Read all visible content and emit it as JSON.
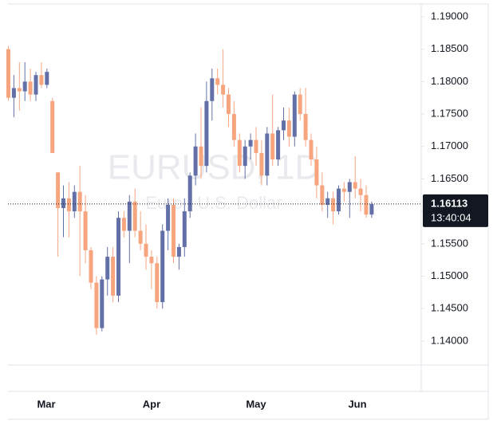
{
  "chart_data": {
    "type": "candlestick",
    "watermark_title": "EURUSD, 1D",
    "watermark_subtitle": "Euro / U.S. Dollar",
    "up_color": "#6370a8",
    "down_color": "#f6a57f",
    "open": [
      1.185,
      1.1775,
      1.179,
      1.1785,
      1.18,
      1.178,
      1.181,
      1.1795,
      1.177,
      1.166,
      1.1605,
      1.162,
      1.16,
      1.163,
      1.16,
      1.154,
      1.149,
      1.142,
      1.1495,
      1.153,
      1.147,
      1.159,
      1.157,
      1.1615,
      1.157,
      1.155,
      1.153,
      1.152,
      1.146,
      1.157,
      1.161,
      1.153,
      1.1545,
      1.16,
      1.1655,
      1.17,
      1.167,
      1.177,
      1.1805,
      1.1795,
      1.178,
      1.175,
      1.171,
      1.167,
      1.17,
      1.171,
      1.169,
      1.1655,
      1.172,
      1.168,
      1.1725,
      1.174,
      1.1715,
      1.178,
      1.175,
      1.171,
      1.168,
      1.164,
      1.161,
      1.162,
      1.16,
      1.1635,
      1.163,
      1.1645,
      1.1635,
      1.1625,
      1.1595
    ],
    "high": [
      1.1855,
      1.181,
      1.183,
      1.183,
      1.182,
      1.1815,
      1.183,
      1.182,
      1.1775,
      1.166,
      1.164,
      1.1645,
      1.164,
      1.167,
      1.1625,
      1.1545,
      1.15,
      1.15,
      1.1545,
      1.1545,
      1.16,
      1.16,
      1.1625,
      1.1635,
      1.16,
      1.158,
      1.154,
      1.153,
      1.158,
      1.162,
      1.162,
      1.155,
      1.162,
      1.166,
      1.172,
      1.176,
      1.18,
      1.182,
      1.182,
      1.185,
      1.179,
      1.177,
      1.172,
      1.171,
      1.172,
      1.173,
      1.171,
      1.173,
      1.178,
      1.173,
      1.176,
      1.176,
      1.1785,
      1.179,
      1.179,
      1.172,
      1.17,
      1.166,
      1.163,
      1.163,
      1.164,
      1.1645,
      1.165,
      1.1685,
      1.165,
      1.164,
      1.1615
    ],
    "low": [
      1.177,
      1.1745,
      1.1755,
      1.177,
      1.177,
      1.177,
      1.179,
      1.179,
      1.169,
      1.153,
      1.156,
      1.156,
      1.159,
      1.15,
      1.152,
      1.148,
      1.141,
      1.1415,
      1.147,
      1.146,
      1.146,
      1.156,
      1.152,
      1.156,
      1.154,
      1.151,
      1.148,
      1.145,
      1.145,
      1.154,
      1.152,
      1.151,
      1.153,
      1.159,
      1.164,
      1.165,
      1.166,
      1.174,
      1.178,
      1.176,
      1.173,
      1.17,
      1.166,
      1.165,
      1.168,
      1.167,
      1.164,
      1.164,
      1.167,
      1.167,
      1.171,
      1.17,
      1.17,
      1.174,
      1.17,
      1.167,
      1.162,
      1.16,
      1.159,
      1.158,
      1.1595,
      1.1615,
      1.159,
      1.162,
      1.16,
      1.159,
      1.159
    ],
    "close": [
      1.1775,
      1.179,
      1.1785,
      1.18,
      1.178,
      1.181,
      1.1795,
      1.1815,
      1.169,
      1.1605,
      1.162,
      1.16,
      1.163,
      1.16,
      1.154,
      1.149,
      1.142,
      1.1495,
      1.153,
      1.147,
      1.159,
      1.157,
      1.1615,
      1.157,
      1.155,
      1.153,
      1.152,
      1.146,
      1.157,
      1.161,
      1.153,
      1.1545,
      1.16,
      1.1655,
      1.17,
      1.167,
      1.177,
      1.1805,
      1.1795,
      1.178,
      1.175,
      1.171,
      1.167,
      1.17,
      1.171,
      1.169,
      1.1655,
      1.172,
      1.168,
      1.1725,
      1.174,
      1.1715,
      1.178,
      1.175,
      1.171,
      1.168,
      1.164,
      1.161,
      1.162,
      1.16,
      1.1635,
      1.163,
      1.1645,
      1.1635,
      1.1625,
      1.1595,
      1.1611
    ],
    "xticks": [
      "Mar",
      "Apr",
      "May",
      "Jun"
    ],
    "ylim": [
      1.1363,
      1.192
    ],
    "yticks": [
      {
        "value": 1.14,
        "label": "1.14000"
      },
      {
        "value": 1.145,
        "label": "1.14500"
      },
      {
        "value": 1.15,
        "label": "1.15000"
      },
      {
        "value": 1.155,
        "label": "1.15500"
      },
      {
        "value": 1.16,
        "label": "1.16000"
      },
      {
        "value": 1.165,
        "label": "1.16500"
      },
      {
        "value": 1.17,
        "label": "1.17000"
      },
      {
        "value": 1.175,
        "label": "1.17500"
      },
      {
        "value": 1.18,
        "label": "1.18000"
      },
      {
        "value": 1.185,
        "label": "1.18500"
      },
      {
        "value": 1.19,
        "label": "1.19000"
      }
    ],
    "last_price": 1.16113,
    "countdown": "13:40:04"
  }
}
